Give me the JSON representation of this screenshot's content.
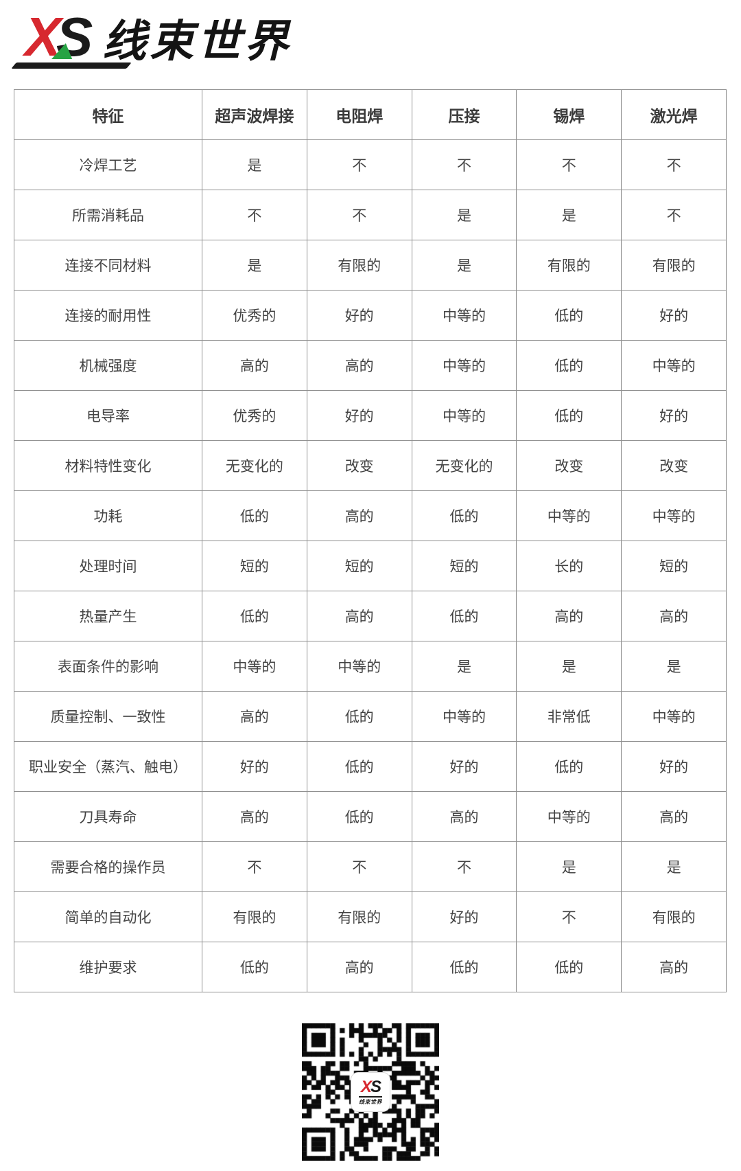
{
  "logo": {
    "x": "X",
    "s": "S",
    "brand": "线束世界"
  },
  "table": {
    "headers": [
      "特征",
      "超声波焊接",
      "电阻焊",
      "压接",
      "锡焊",
      "激光焊"
    ],
    "rows": [
      {
        "feature": "冷焊工艺",
        "values": [
          "是",
          "不",
          "不",
          "不",
          "不"
        ]
      },
      {
        "feature": "所需消耗品",
        "values": [
          "不",
          "不",
          "是",
          "是",
          "不"
        ]
      },
      {
        "feature": "连接不同材料",
        "values": [
          "是",
          "有限的",
          "是",
          "有限的",
          "有限的"
        ]
      },
      {
        "feature": "连接的耐用性",
        "values": [
          "优秀的",
          "好的",
          "中等的",
          "低的",
          "好的"
        ]
      },
      {
        "feature": "机械强度",
        "values": [
          "高的",
          "高的",
          "中等的",
          "低的",
          "中等的"
        ]
      },
      {
        "feature": "电导率",
        "values": [
          "优秀的",
          "好的",
          "中等的",
          "低的",
          "好的"
        ]
      },
      {
        "feature": "材料特性变化",
        "values": [
          "无变化的",
          "改变",
          "无变化的",
          "改变",
          "改变"
        ]
      },
      {
        "feature": "功耗",
        "values": [
          "低的",
          "高的",
          "低的",
          "中等的",
          "中等的"
        ]
      },
      {
        "feature": "处理时间",
        "values": [
          "短的",
          "短的",
          "短的",
          "长的",
          "短的"
        ]
      },
      {
        "feature": "热量产生",
        "values": [
          "低的",
          "高的",
          "低的",
          "高的",
          "高的"
        ]
      },
      {
        "feature": "表面条件的影响",
        "values": [
          "中等的",
          "中等的",
          "是",
          "是",
          "是"
        ]
      },
      {
        "feature": "质量控制、一致性",
        "values": [
          "高的",
          "低的",
          "中等的",
          "非常低",
          "中等的"
        ]
      },
      {
        "feature": "职业安全（蒸汽、触电）",
        "values": [
          "好的",
          "低的",
          "好的",
          "低的",
          "好的"
        ]
      },
      {
        "feature": "刀具寿命",
        "values": [
          "高的",
          "低的",
          "高的",
          "中等的",
          "高的"
        ]
      },
      {
        "feature": "需要合格的操作员",
        "values": [
          "不",
          "不",
          "不",
          "是",
          "是"
        ]
      },
      {
        "feature": "简单的自动化",
        "values": [
          "有限的",
          "有限的",
          "好的",
          "不",
          "有限的"
        ]
      },
      {
        "feature": "维护要求",
        "values": [
          "低的",
          "高的",
          "低的",
          "低的",
          "高的"
        ]
      }
    ]
  },
  "qr": {
    "logo_x": "X",
    "logo_s": "S",
    "logo_text": "线束世界"
  },
  "colors": {
    "brand_red": "#d7282f",
    "brand_green": "#27a344",
    "table_border": "#8f8f8f",
    "text": "#3b3b3b"
  }
}
